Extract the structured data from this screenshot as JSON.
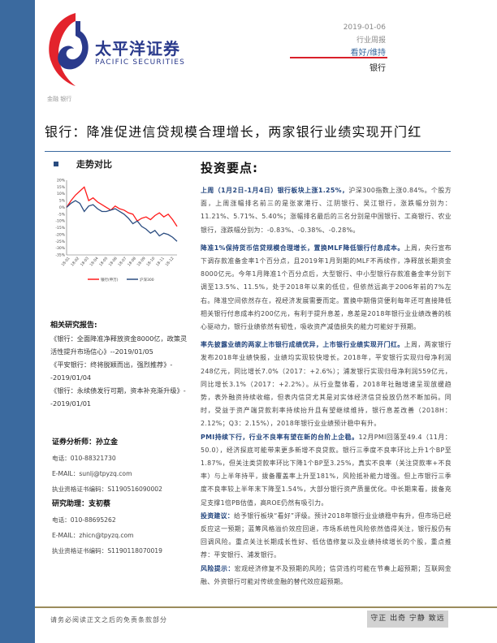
{
  "brand": {
    "name_cn": "太平洋证券",
    "name_en": "PACIFIC SECURITIES",
    "colors": {
      "red": "#d9202a",
      "blue": "#2a3a8c",
      "sidebar": "#3b6a9f"
    }
  },
  "meta": {
    "date": "2019-01-06",
    "report_type": "行业周报",
    "rating": "看好/维持",
    "sector": "银行"
  },
  "breadcrumb": "金融 银行",
  "title": "银行：降准促进信贷规模合理增长，两家银行业绩实现开门红",
  "trend": {
    "heading": "走势对比"
  },
  "chart_data": {
    "type": "line",
    "ylim": [
      -35,
      20
    ],
    "y_ticks": [
      "20%",
      "15%",
      "10%",
      "5%",
      "0%",
      "-5%",
      "-10%",
      "-15%",
      "-20%",
      "-25%",
      "-30%",
      "-35%"
    ],
    "x_ticks": [
      "18-01",
      "18-02",
      "18-03",
      "18-04",
      "18-05",
      "18-06",
      "18-07",
      "18-08",
      "18-09",
      "18-10",
      "18-11",
      "18-12"
    ],
    "legend_position": "bottom",
    "series": [
      {
        "name": "银行(申万)",
        "color": "#ff1a1a",
        "values": [
          0,
          5,
          9,
          12,
          15,
          5,
          7,
          4,
          2,
          0,
          -2,
          1,
          -1,
          -2,
          -4,
          -5,
          -10,
          -8,
          -7,
          -9,
          -6,
          -4,
          -7,
          -5,
          -9,
          -14
        ]
      },
      {
        "name": "沪深300",
        "color": "#2a4c80",
        "values": [
          0,
          3,
          5,
          3,
          -3,
          1,
          2,
          -1,
          -3,
          -3,
          -2,
          -1,
          -3,
          -5,
          -8,
          -12,
          -10,
          -14,
          -16,
          -19,
          -17,
          -21,
          -19,
          -20,
          -22,
          -25
        ]
      }
    ]
  },
  "related": {
    "heading": "相关研究报告:",
    "items": [
      "《银行：全面降准净释放资金8000亿，政策灵活性提升市场信心》--2019/01/05",
      "《平安银行：终将脱颖而出，强烈推荐》--2019/01/04",
      "《银行：永续债发行可期，资本补充渐升级》--2019/01/01"
    ]
  },
  "analyst": {
    "heading": "证券分析师：孙立金",
    "phone": "电话：010-88321730",
    "email": "E-MAIL：sunlj@tpyzq.com",
    "license": "执业资格证书编码：S1190516090002"
  },
  "assistant": {
    "heading": "研究助理：支初蔡",
    "phone": "电话：010-88695262",
    "email": "E-MAIL：zhicn@tpyzq.com",
    "license": "执业资格证书编码：S1190118070019"
  },
  "main": {
    "heading": "投资要点:",
    "paragraphs": [
      {
        "lead": "上周（1月2日-1月4日）银行板块上涨1.25%，",
        "body": "沪深300指数上涨0.84%。个股方面，上周涨幅排名前三的是张家港行、江阴银行、吴江银行，涨跌幅分别为：11.21%、5.71%、5.40%；涨幅排名最后的三名分别是中国银行、工商银行、农业银行，涨跌幅分别为：-0.83%、-0.38%、-0.28%。"
      },
      {
        "lead": "降准1%保持货币信贷规模合理增长，置换MLF降低银行付息成本。",
        "body": "上周，央行宣布下调存款准备金率1个百分点，且2019年1月到期的MLF不再续作，净释放长期资金8000亿元。今年1月降准1个百分点后，大型银行、中小型银行存款准备金率分别下调至13.5%、11.5%，处于2018年以来的低位，但依然远高于2006年前的7%左右。降准空间依然存在，视经济发展需要而定。置换中期借贷便利每年还可直接降低相关银行付息成本约200亿元，有利于提升息差，息差是2018年银行业业绩改善的核心驱动力，银行业绩依然有韧性，吸收资产减值损失的能力可能好于预期。"
      },
      {
        "lead": "率先披露业绩的两家上市银行成绩优异，上市银行业绩实现开门红。",
        "body": "上周，两家银行发布2018年业绩快报，业绩均实现较快增长。2018年，平安银行实现归母净利润248亿元，同比增长7.0%（2017：+2.6%）；浦发银行实现归母净利润559亿元，同比增长3.1%（2017：+2.2%）。从行业整体看，2018年社融增速呈现放缓趋势，表外融资持续收缩，但表内信贷尤其是对实体经济信贷投放仍然不断加码。同时，受益于资产端贷款利率持续抬升且有望继续维持，银行息差改善（2018H：2.12%；Q3：2.15%），2018年银行业业绩预计稳中有升。"
      },
      {
        "lead": "PMI持续下行，行业不良率有望在新的台阶上企稳。",
        "body": "12月PMI回落至49.4（11月：50.0），经济探底可能带来更多新增不良贷款。银行三季度不良率环比上升1个BP至1.87%，但关注类贷款率环比下降1个BP至3.25%，真实不良率（关注贷款率+不良率）与上半年持平，拨备覆盖率上升至181%，风险抵补能力增强。但上市银行三季度不良率较上半年末下降至1.54%，大部分银行资产质量优化。中长期来看，拨备充足支撑1倍PB估值，高ROE仍然有吸引力。"
      },
      {
        "lead": "投资建议：",
        "body": "给予银行板块“看好”评级。预计2018年银行业业绩稳中有升，但市场已经反应这一预期；蓝筹风格溢价效应回退，市场系统性风险依然值得关注，银行股仍有回调风险。重点关注长期成长性好、低估值修复以及业绩持续增长的个股，重点推荐：平安银行、浦发银行。"
      },
      {
        "lead": "风险提示：",
        "body": "宏观经济修复不及预期的风险；信贷违约可能在节奏上超预期；互联网金融、外资银行可能对传统金融的替代效应超预期。"
      }
    ]
  },
  "footer": {
    "disclaimer": "请务必阅读正文之后的免责条款部分",
    "motto": "守正 出奇 宁静 致远"
  }
}
